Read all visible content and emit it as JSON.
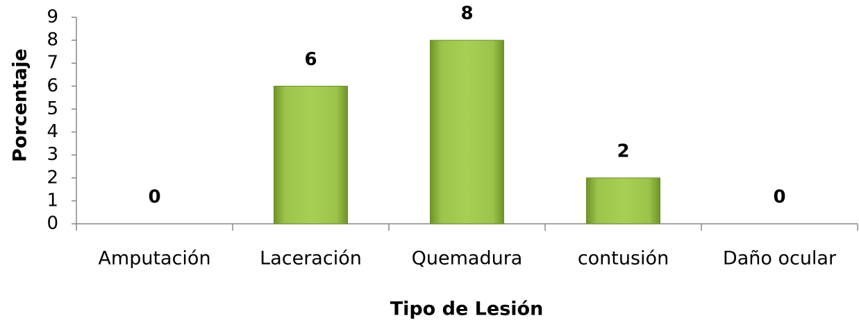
{
  "chart_data": {
    "type": "bar",
    "x_label": "Tipo de Lesión",
    "y_label": "Porcentaje",
    "categories": [
      "Amputación",
      "Laceración",
      "Quemadura",
      "contusión",
      "Daño ocular"
    ],
    "values": [
      0,
      6,
      8,
      2,
      0
    ],
    "color": "#8db33a",
    "ylim": [
      0,
      9
    ],
    "yticks": [
      0,
      1,
      2,
      3,
      4,
      5,
      6,
      7,
      8,
      9
    ],
    "grid": false
  }
}
